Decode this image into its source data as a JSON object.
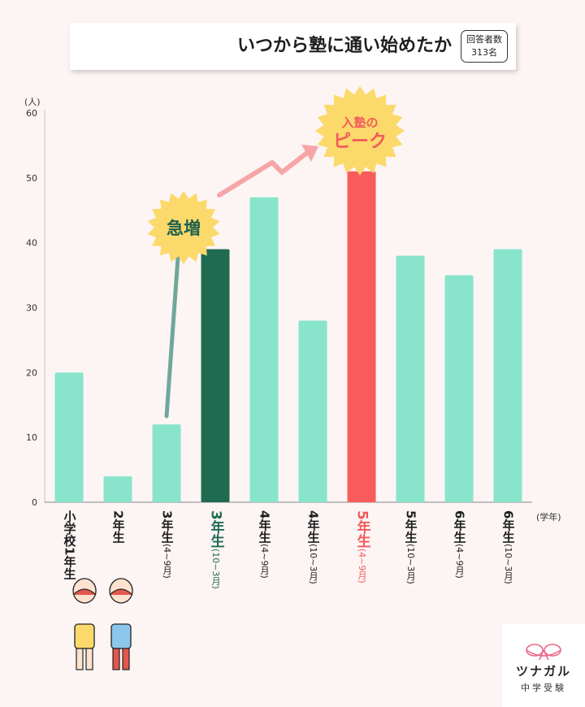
{
  "title": "いつから塾に通い始めたか",
  "respondents": {
    "line1": "回答者数",
    "line2": "313名"
  },
  "chart_data": {
    "type": "bar",
    "y_unit_label": "(人)",
    "x_unit_label": "(学年)",
    "ylim": [
      0,
      60
    ],
    "yticks": [
      "0",
      "10",
      "20",
      "30",
      "40",
      "50",
      "60"
    ],
    "categories": [
      {
        "main": "小学校1年生",
        "sub": ""
      },
      {
        "main": "2年生",
        "sub": ""
      },
      {
        "main": "3年生",
        "sub": "(4~9月)"
      },
      {
        "main": "3年生",
        "sub": "(10~3月)"
      },
      {
        "main": "4年生",
        "sub": "(4~9月)"
      },
      {
        "main": "4年生",
        "sub": "(10~3月)"
      },
      {
        "main": "5年生",
        "sub": "(4~9月)"
      },
      {
        "main": "5年生",
        "sub": "(10~3月)"
      },
      {
        "main": "6年生",
        "sub": "(4~9月)"
      },
      {
        "main": "6年生",
        "sub": "(10~3月)"
      }
    ],
    "values": [
      20,
      4,
      12,
      39,
      47,
      28,
      51,
      38,
      35,
      39
    ],
    "highlights": {
      "3": "dark",
      "6": "red"
    },
    "colors": {
      "default": "#88e5cc",
      "dark": "#1f6b52",
      "red": "#f85c5c"
    },
    "annotations": {
      "surge": "急増",
      "peak_line1": "入塾の",
      "peak_line2": "ピーク"
    }
  },
  "logo": {
    "name": "ツナガル",
    "sub": "中学受験"
  }
}
